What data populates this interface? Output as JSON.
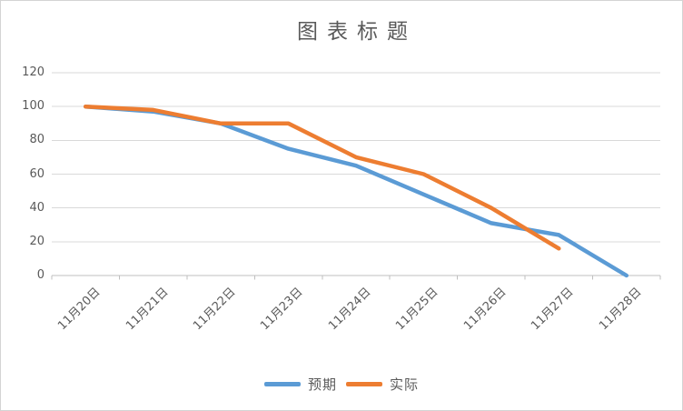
{
  "chart_data": {
    "type": "line",
    "title": "图表标题",
    "categories": [
      "11月20日",
      "11月21日",
      "11月22日",
      "11月23日",
      "11月24日",
      "11月25日",
      "11月26日",
      "11月27日",
      "11月28日"
    ],
    "series": [
      {
        "name": "预期",
        "color": "#5B9BD5",
        "values": [
          100,
          97,
          90,
          75,
          65,
          48,
          31,
          24,
          0
        ]
      },
      {
        "name": "实际",
        "color": "#ED7D31",
        "values": [
          100,
          98,
          90,
          90,
          70,
          60,
          40,
          16,
          null
        ]
      }
    ],
    "y_tick_labels": [
      "120",
      "100",
      "80",
      "60",
      "40",
      "20",
      "0"
    ],
    "ylim": [
      0,
      120
    ],
    "ytick_step": 20,
    "grid": true,
    "legend_position": "bottom",
    "gridline_color": "#D9D9D9",
    "axis_color": "#BFBFBF",
    "text_color": "#595959"
  }
}
